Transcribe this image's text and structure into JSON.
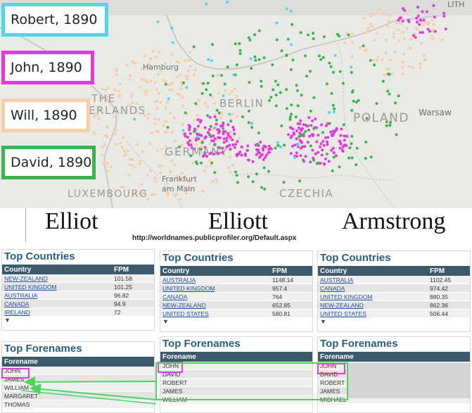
{
  "map": {
    "labels": {
      "hamburg": "Hamburg",
      "the": "THE",
      "netherlands": "ERLANDS",
      "berlin": "BERLIN",
      "poland": "POLAND",
      "warsaw": "Warsaw",
      "germany": "GERMANY",
      "frankfurt": "Frankfurt",
      "am_main": "am Main",
      "luxembourg": "LUXEMBOURG",
      "czechia": "CZECHIA",
      "lith": "LITH"
    },
    "legend": [
      {
        "label": "Robert, 1890",
        "color": "#4dd9e8"
      },
      {
        "label": "John, 1890",
        "color": "#e03cd8"
      },
      {
        "label": "Will, 1890",
        "color": "#f6cfa8"
      },
      {
        "label": "David, 1890",
        "color": "#3bb34f"
      }
    ]
  },
  "surnames": [
    "Elliot",
    "Elliott",
    "Armstrong"
  ],
  "url": "http://worldnames.publicprofiler.org/Default.aspx",
  "countries_title": "Top Countries",
  "country_col": "Country",
  "fpm_col": "FPM",
  "forenames_title": "Top Forenames",
  "forename_col": "Forename",
  "panels": [
    {
      "countries": [
        {
          "name": "NEW-ZEALAND",
          "fpm": "101.58"
        },
        {
          "name": "UNITED KINGDOM",
          "fpm": "101.25"
        },
        {
          "name": "AUSTRALIA",
          "fpm": "96.82"
        },
        {
          "name": "CANADA",
          "fpm": "94.9"
        },
        {
          "name": "IRELAND",
          "fpm": "72"
        }
      ],
      "forenames": [
        "JOHN",
        "JAMES",
        "WILLIAM",
        "MARGARET",
        "THOMAS"
      ]
    },
    {
      "countries": [
        {
          "name": "AUSTRALIA",
          "fpm": "1148.14"
        },
        {
          "name": "UNITED KINGDOM",
          "fpm": "957.4"
        },
        {
          "name": "CANADA",
          "fpm": "764"
        },
        {
          "name": "NEW-ZEALAND",
          "fpm": "652.85"
        },
        {
          "name": "UNITED STATES",
          "fpm": "580.81"
        }
      ],
      "forenames": [
        "JOHN",
        "DAVID",
        "ROBERT",
        "JAMES",
        "WILLIAM"
      ]
    },
    {
      "countries": [
        {
          "name": "AUSTRALIA",
          "fpm": "1102.45"
        },
        {
          "name": "CANADA",
          "fpm": "974.42"
        },
        {
          "name": "UNITED KINGDOM",
          "fpm": "880.35"
        },
        {
          "name": "NEW-ZEALAND",
          "fpm": "862.36"
        },
        {
          "name": "UNITED STATES",
          "fpm": "506.44"
        }
      ],
      "forenames": [
        "JOHN",
        "DAVID",
        "ROBERT",
        "JAMES",
        "MICHAEL"
      ]
    }
  ],
  "colors": {
    "john": "#e03cd8",
    "robert": "#4dd9e8",
    "will": "#f6cfa8",
    "david": "#3bb34f",
    "arrow": "#4cd45e",
    "header": "#3d5a6c",
    "title": "#2b5d7f"
  },
  "icons": {
    "export": "download-icon"
  }
}
